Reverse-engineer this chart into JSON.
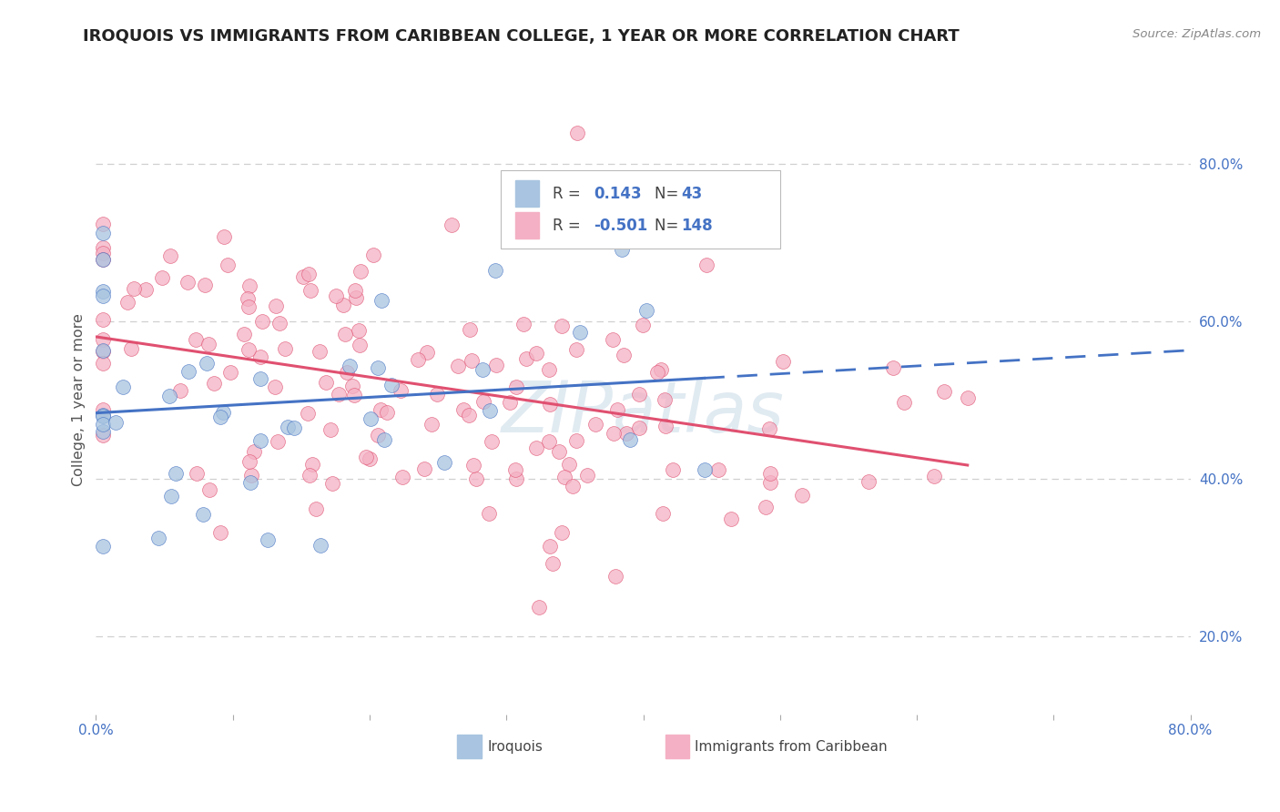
{
  "title": "IROQUOIS VS IMMIGRANTS FROM CARIBBEAN COLLEGE, 1 YEAR OR MORE CORRELATION CHART",
  "source_text": "Source: ZipAtlas.com",
  "ylabel_text": "College, 1 year or more",
  "xlim": [
    0.0,
    0.8
  ],
  "ylim": [
    0.1,
    0.9
  ],
  "y_tick_positions_right": [
    0.2,
    0.4,
    0.6,
    0.8
  ],
  "y_tick_labels_right": [
    "20.0%",
    "40.0%",
    "60.0%",
    "80.0%"
  ],
  "background_color": "#ffffff",
  "grid_color": "#d0d0d0",
  "blue_color": "#a8c4e0",
  "pink_color": "#f4b0c4",
  "blue_line_color": "#4472c4",
  "pink_line_color": "#e05070",
  "title_color": "#222222",
  "axis_label_color": "#555555",
  "tick_color": "#4472c4",
  "watermark_color": "#dde8f0",
  "R_iroquois": 0.143,
  "N_iroquois": 43,
  "R_caribbean": -0.501,
  "N_caribbean": 148,
  "iroquois_seed": 7,
  "caribbean_seed": 13
}
